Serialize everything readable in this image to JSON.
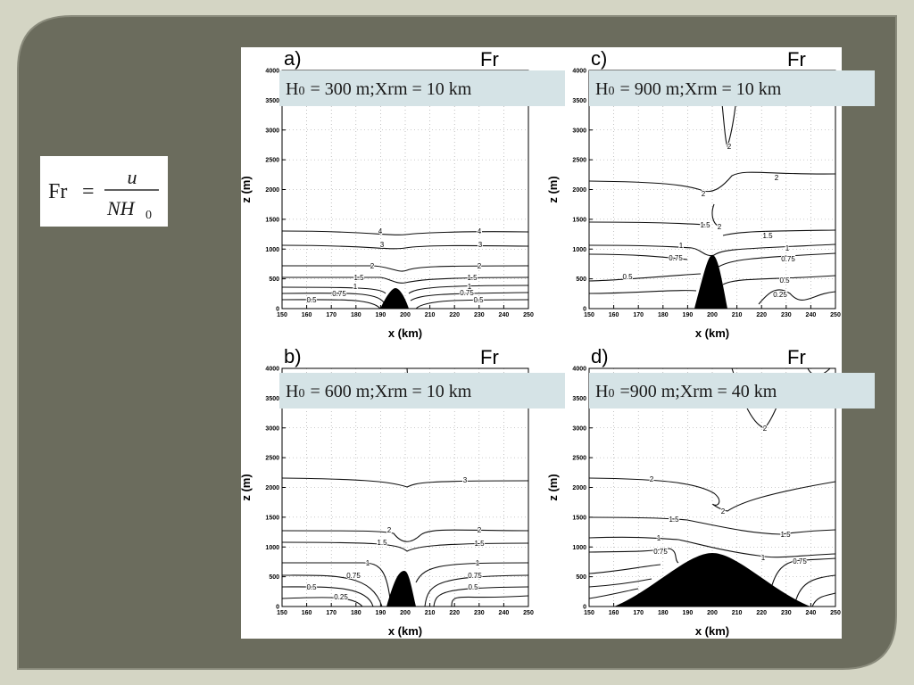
{
  "formula": {
    "lhs": "Fr",
    "equals": "=",
    "numerator": "u",
    "denominator": "NH",
    "denominator_sub": "0"
  },
  "axes": {
    "x_label": "x (km)",
    "y_label": "z (m)",
    "xlim": [
      150,
      250
    ],
    "ylim": [
      0,
      4000
    ],
    "xticks": [
      150,
      160,
      170,
      180,
      190,
      200,
      210,
      220,
      230,
      240,
      250
    ],
    "yticks": [
      0,
      500,
      1000,
      1500,
      2000,
      2500,
      3000,
      3500,
      4000
    ]
  },
  "panels": [
    {
      "letter": "a)",
      "variable": "Fr",
      "caption": {
        "symbol": "H",
        "sub": "0",
        "text": "= 300 m;Xrm = 10 km"
      },
      "contour_labels": [
        "4",
        "3",
        "2",
        "1.5",
        "1",
        "0.75",
        "0.5"
      ]
    },
    {
      "letter": "b)",
      "variable": "Fr",
      "caption": {
        "symbol": "H",
        "sub": "0",
        "text": "= 600 m;Xrm = 10 km"
      },
      "contour_labels": [
        "3",
        "2",
        "1.5",
        "1",
        "0.75",
        "0.5",
        "0.25"
      ]
    },
    {
      "letter": "c)",
      "variable": "Fr",
      "caption": {
        "symbol": "H",
        "sub": "0",
        "text": "= 900 m;Xrm = 10 km"
      },
      "contour_labels": [
        "2",
        "1.5",
        "1",
        "0.75",
        "0.5",
        "0.25"
      ]
    },
    {
      "letter": "d)",
      "variable": "Fr",
      "caption": {
        "symbol": "H",
        "sub": "0",
        "text": "=900 m;Xrm = 40 km"
      },
      "contour_labels": [
        "2",
        "1.5",
        "1",
        "0.75"
      ]
    }
  ]
}
